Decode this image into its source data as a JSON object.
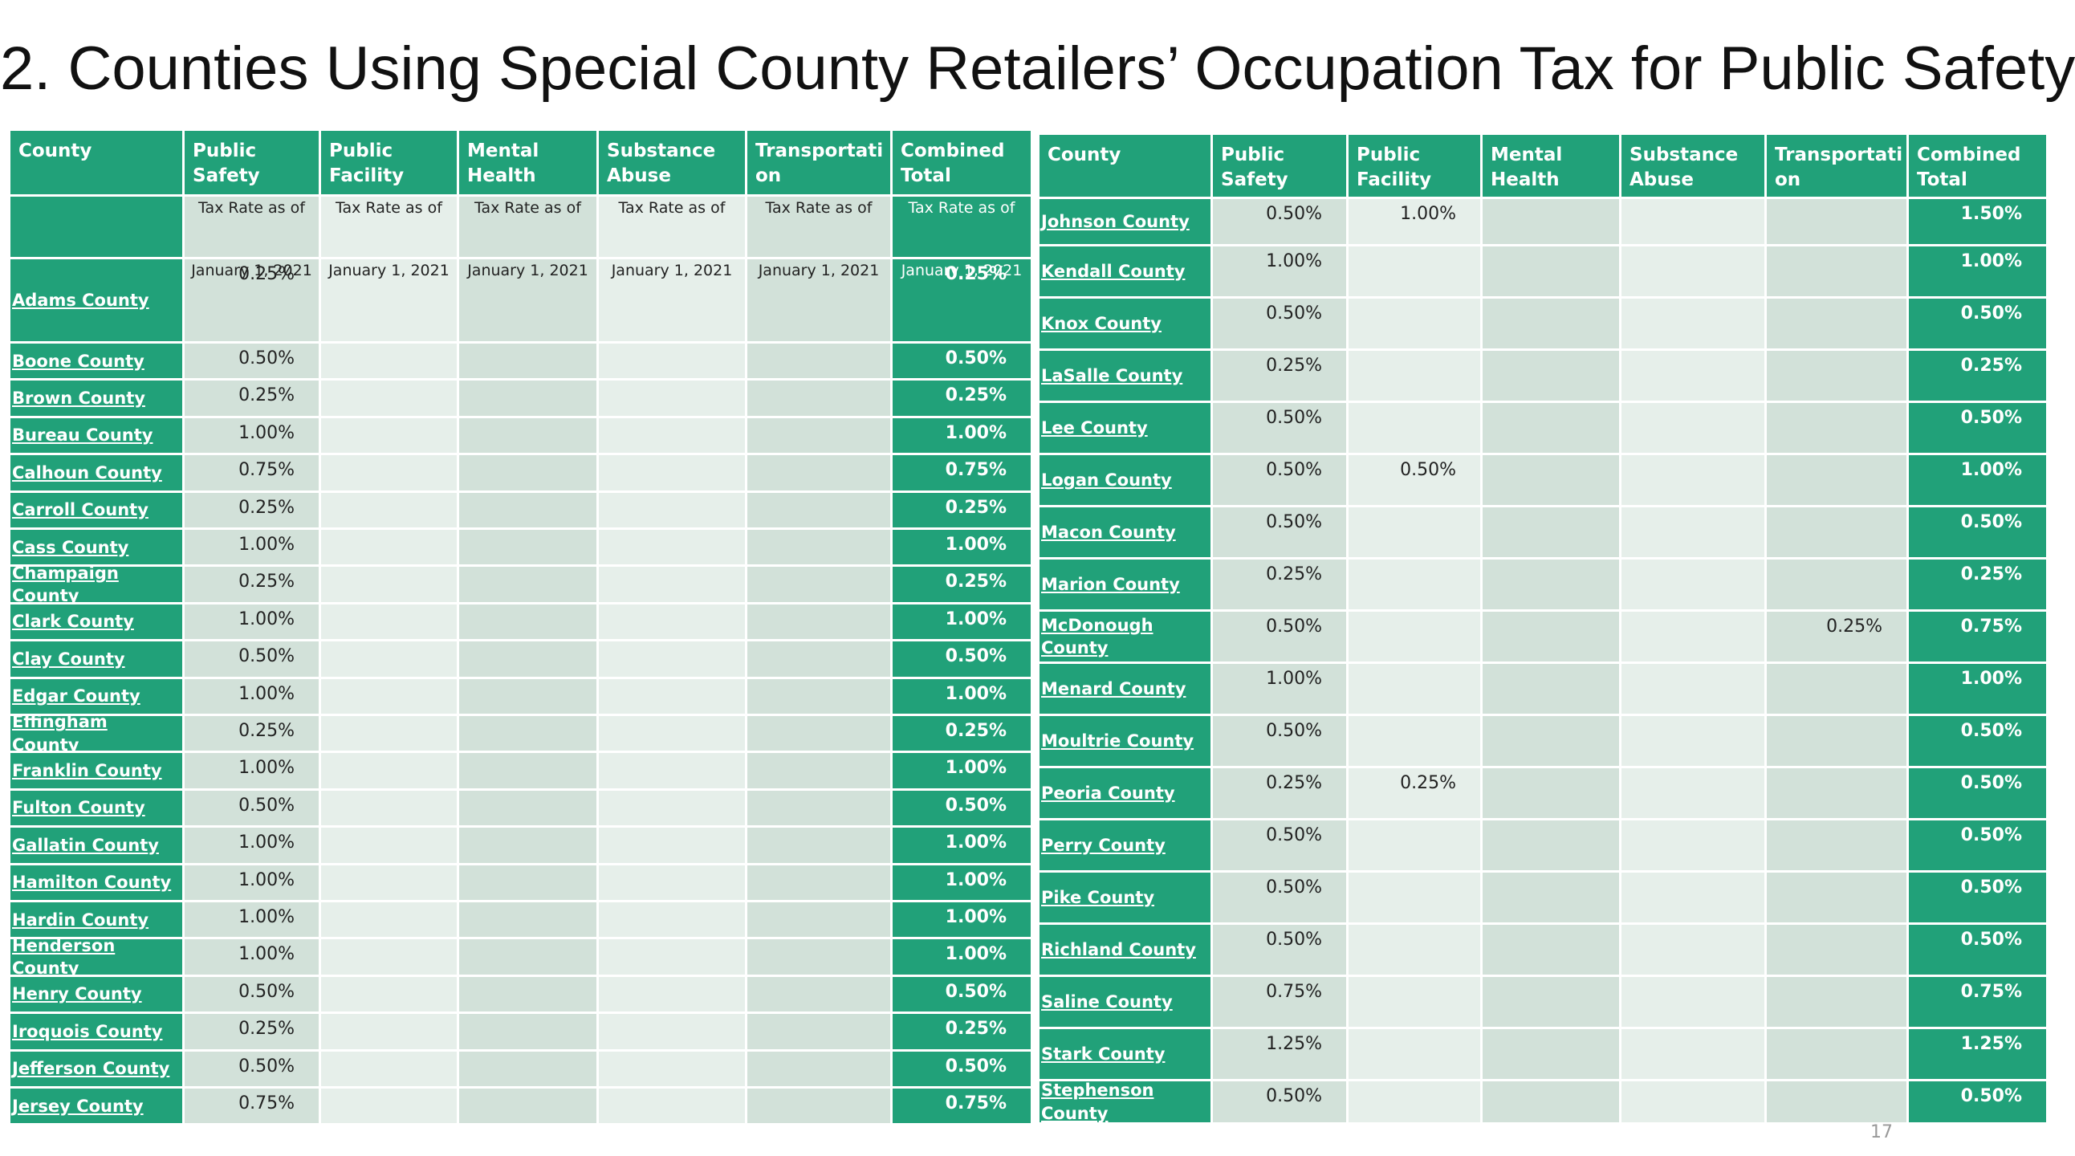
{
  "title": "2. Counties Using Special County Retailers’ Occupation Tax for Public Safety",
  "page_number": "17",
  "left_table": {
    "header": [
      "County",
      "Public Safety",
      "Public Facility",
      "Mental Health",
      "Substance Abuse",
      "Transportati on",
      "Combined Total"
    ],
    "rate_label": [
      "Tax Rate as of",
      "Tax Rate as of",
      "Tax Rate as of",
      "Tax Rate as of",
      "Tax Rate as of",
      "Tax Rate as of"
    ],
    "rate_date": [
      "January 1, 2021",
      "January 1, 2021",
      "January 1, 2021",
      "January 1, 2021",
      "January 1, 2021",
      "January 1, 2021"
    ],
    "rows": [
      {
        "county": "Adams County",
        "public_safety": "0.25%",
        "combined_total": "0.25%"
      },
      {
        "county": "Boone County",
        "public_safety": "0.50%",
        "combined_total": "0.50%"
      },
      {
        "county": "Brown County",
        "public_safety": "0.25%",
        "combined_total": "0.25%"
      },
      {
        "county": "Bureau County",
        "public_safety": "1.00%",
        "combined_total": "1.00%"
      },
      {
        "county": "Calhoun County",
        "public_safety": "0.75%",
        "combined_total": "0.75%"
      },
      {
        "county": "Carroll County",
        "public_safety": "0.25%",
        "combined_total": "0.25%"
      },
      {
        "county": "Cass County",
        "public_safety": "1.00%",
        "combined_total": "1.00%"
      },
      {
        "county": "Champaign County",
        "public_safety": "0.25%",
        "combined_total": "0.25%"
      },
      {
        "county": "Clark County",
        "public_safety": "1.00%",
        "combined_total": "1.00%"
      },
      {
        "county": "Clay County",
        "public_safety": "0.50%",
        "combined_total": "0.50%"
      },
      {
        "county": "Edgar County",
        "public_safety": "1.00%",
        "combined_total": "1.00%"
      },
      {
        "county": "Effingham County",
        "public_safety": "0.25%",
        "combined_total": "0.25%"
      },
      {
        "county": "Franklin County",
        "public_safety": "1.00%",
        "combined_total": "1.00%"
      },
      {
        "county": "Fulton County",
        "public_safety": "0.50%",
        "combined_total": "0.50%"
      },
      {
        "county": "Gallatin County",
        "public_safety": "1.00%",
        "combined_total": "1.00%"
      },
      {
        "county": "Hamilton County",
        "public_safety": "1.00%",
        "combined_total": "1.00%"
      },
      {
        "county": "Hardin County",
        "public_safety": "1.00%",
        "combined_total": "1.00%"
      },
      {
        "county": "Henderson County",
        "public_safety": "1.00%",
        "combined_total": "1.00%"
      },
      {
        "county": "Henry County",
        "public_safety": "0.50%",
        "combined_total": "0.50%"
      },
      {
        "county": "Iroquois County",
        "public_safety": "0.25%",
        "combined_total": "0.25%"
      },
      {
        "county": "Jefferson County",
        "public_safety": "0.50%",
        "combined_total": "0.50%"
      },
      {
        "county": "Jersey County",
        "public_safety": "0.75%",
        "combined_total": "0.75%"
      }
    ]
  },
  "right_table": {
    "header": [
      "County",
      "Public Safety",
      "Public Facility",
      "Mental Health",
      "Substance Abuse",
      "Transportati on",
      "Combined Total"
    ],
    "rows": [
      {
        "county": "Johnson County",
        "public_safety": "0.50%",
        "public_facility": "1.00%",
        "combined_total": "1.50%"
      },
      {
        "county": "Kendall County",
        "public_safety": "1.00%",
        "combined_total": "1.00%"
      },
      {
        "county": "Knox County",
        "public_safety": "0.50%",
        "combined_total": "0.50%"
      },
      {
        "county": "LaSalle County",
        "public_safety": "0.25%",
        "combined_total": "0.25%"
      },
      {
        "county": "Lee County",
        "public_safety": "0.50%",
        "combined_total": "0.50%"
      },
      {
        "county": "Logan County",
        "public_safety": "0.50%",
        "public_facility": "0.50%",
        "combined_total": "1.00%"
      },
      {
        "county": "Macon County",
        "public_safety": "0.50%",
        "combined_total": "0.50%"
      },
      {
        "county": "Marion County",
        "public_safety": "0.25%",
        "combined_total": "0.25%"
      },
      {
        "county": "McDonough County",
        "public_safety": "0.50%",
        "transportation": "0.25%",
        "combined_total": "0.75%"
      },
      {
        "county": "Menard County",
        "public_safety": "1.00%",
        "combined_total": "1.00%"
      },
      {
        "county": "Moultrie County",
        "public_safety": "0.50%",
        "combined_total": "0.50%"
      },
      {
        "county": "Peoria County",
        "public_safety": "0.25%",
        "public_facility": "0.25%",
        "combined_total": "0.50%"
      },
      {
        "county": "Perry County",
        "public_safety": "0.50%",
        "combined_total": "0.50%"
      },
      {
        "county": "Pike County",
        "public_safety": "0.50%",
        "combined_total": "0.50%"
      },
      {
        "county": "Richland County",
        "public_safety": "0.50%",
        "combined_total": "0.50%"
      },
      {
        "county": "Saline County",
        "public_safety": "0.75%",
        "combined_total": "0.75%"
      },
      {
        "county": "Stark County",
        "public_safety": "1.25%",
        "combined_total": "1.25%"
      },
      {
        "county": "Stephenson County",
        "public_safety": "0.50%",
        "combined_total": "0.50%"
      }
    ]
  }
}
